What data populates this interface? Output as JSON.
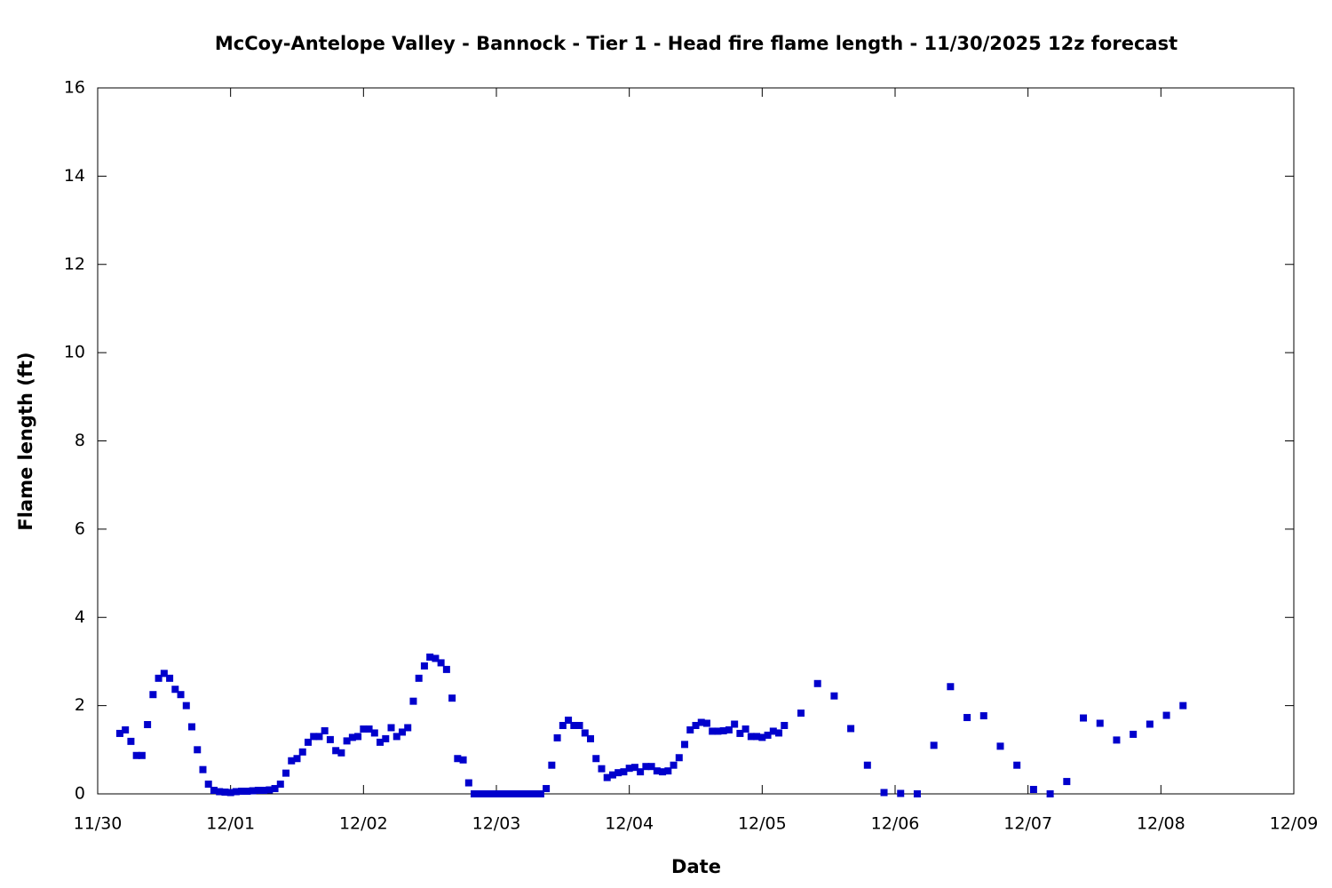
{
  "chart_data": {
    "type": "scatter",
    "title": "McCoy-Antelope Valley - Bannock - Tier 1 - Head fire flame length - 11/30/2025 12z forecast",
    "x_label": "Date",
    "y_label": "Flame length (ft)",
    "color": "#0000cc",
    "grid": false,
    "xlim": [
      0,
      9
    ],
    "xticks": [
      {
        "value": 0,
        "label": "11/30"
      },
      {
        "value": 1,
        "label": "12/01"
      },
      {
        "value": 2,
        "label": "12/02"
      },
      {
        "value": 3,
        "label": "12/03"
      },
      {
        "value": 4,
        "label": "12/04"
      },
      {
        "value": 5,
        "label": "12/05"
      },
      {
        "value": 6,
        "label": "12/06"
      },
      {
        "value": 7,
        "label": "12/07"
      },
      {
        "value": 8,
        "label": "12/08"
      },
      {
        "value": 9,
        "label": "12/09"
      }
    ],
    "ylim": [
      0,
      16
    ],
    "yticks": [
      0,
      2,
      4,
      6,
      8,
      10,
      12,
      14,
      16
    ],
    "x": [
      0.1667,
      0.2083,
      0.25,
      0.2917,
      0.3333,
      0.375,
      0.4167,
      0.4583,
      0.5,
      0.5417,
      0.5833,
      0.625,
      0.6667,
      0.7083,
      0.75,
      0.7917,
      0.8333,
      0.875,
      0.9167,
      0.9583,
      1,
      1.0417,
      1.0833,
      1.125,
      1.1667,
      1.2083,
      1.25,
      1.2917,
      1.3333,
      1.375,
      1.4167,
      1.4583,
      1.5,
      1.5417,
      1.5833,
      1.625,
      1.6667,
      1.7083,
      1.75,
      1.7917,
      1.8333,
      1.875,
      1.9167,
      1.9583,
      2,
      2.0417,
      2.0833,
      2.125,
      2.1667,
      2.2083,
      2.25,
      2.2917,
      2.3333,
      2.375,
      2.4167,
      2.4583,
      2.5,
      2.5417,
      2.5833,
      2.625,
      2.6667,
      2.7083,
      2.75,
      2.7917,
      2.8333,
      2.875,
      2.9167,
      2.9583,
      3,
      3.0417,
      3.0833,
      3.125,
      3.1667,
      3.2083,
      3.25,
      3.2917,
      3.3333,
      3.375,
      3.4167,
      3.4583,
      3.5,
      3.5417,
      3.5833,
      3.625,
      3.6667,
      3.7083,
      3.75,
      3.7917,
      3.8333,
      3.875,
      3.9167,
      3.9583,
      4,
      4.0417,
      4.0833,
      4.125,
      4.1667,
      4.2083,
      4.25,
      4.2917,
      4.3333,
      4.375,
      4.4167,
      4.4583,
      4.5,
      4.5417,
      4.5833,
      4.625,
      4.6667,
      4.7083,
      4.75,
      4.7917,
      4.8333,
      4.875,
      4.9167,
      4.9583,
      5,
      5.0417,
      5.0833,
      5.125,
      5.1667,
      5.2917,
      5.4167,
      5.5417,
      5.6667,
      5.7917,
      5.9167,
      6.0417,
      6.1667,
      6.2917,
      6.4167,
      6.5417,
      6.6667,
      6.7917,
      6.9167,
      7.0417,
      7.1667,
      7.2917,
      7.4167,
      7.5417,
      7.6667,
      7.7917,
      7.9167,
      8.0417,
      8.1667
    ],
    "values": [
      1.37,
      1.45,
      1.19,
      0.87,
      0.87,
      1.57,
      2.25,
      2.62,
      2.73,
      2.62,
      2.37,
      2.25,
      2.0,
      1.52,
      1.0,
      0.55,
      0.22,
      0.08,
      0.05,
      0.04,
      0.03,
      0.05,
      0.06,
      0.06,
      0.07,
      0.08,
      0.08,
      0.09,
      0.12,
      0.22,
      0.47,
      0.75,
      0.8,
      0.95,
      1.17,
      1.3,
      1.3,
      1.43,
      1.23,
      0.98,
      0.93,
      1.2,
      1.28,
      1.3,
      1.47,
      1.47,
      1.38,
      1.17,
      1.25,
      1.5,
      1.3,
      1.4,
      1.5,
      2.1,
      2.62,
      2.9,
      3.1,
      3.07,
      2.97,
      2.82,
      2.17,
      0.8,
      0.77,
      0.25,
      0,
      0,
      0,
      0,
      0,
      0,
      0,
      0,
      0,
      0,
      0,
      0,
      0,
      0.12,
      0.65,
      1.27,
      1.55,
      1.67,
      1.55,
      1.55,
      1.38,
      1.25,
      0.8,
      0.57,
      0.37,
      0.43,
      0.48,
      0.5,
      0.58,
      0.6,
      0.5,
      0.62,
      0.62,
      0.52,
      0.5,
      0.52,
      0.65,
      0.82,
      1.12,
      1.45,
      1.55,
      1.62,
      1.6,
      1.42,
      1.42,
      1.43,
      1.45,
      1.58,
      1.37,
      1.47,
      1.3,
      1.3,
      1.28,
      1.33,
      1.42,
      1.38,
      1.55,
      1.83,
      2.5,
      2.22,
      1.48,
      0.65,
      0.03,
      0.01,
      0,
      1.1,
      2.43,
      1.73,
      1.77,
      1.08,
      0.65,
      0.1,
      0,
      0.28,
      1.72,
      1.6,
      1.22,
      1.35,
      1.58,
      1.78,
      2.0
    ]
  }
}
